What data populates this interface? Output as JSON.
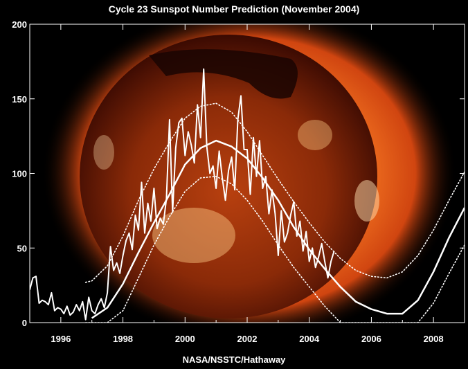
{
  "title": "Cycle 23 Sunspot Number Prediction (November 2004)",
  "credit": "NASA/NSSTC/Hathaway",
  "background_image": "solar X-ray image of the Sun (orange corona, dark disk)",
  "colors": {
    "background": "#000000",
    "corona": "#e8561a",
    "corona_bright": "#ff8a3a",
    "disk": "#4a1205",
    "lines": "#ffffff"
  },
  "chart_data": {
    "type": "line",
    "title": "Cycle 23 Sunspot Number Prediction (November 2004)",
    "xlabel": "",
    "ylabel": "",
    "xlim": [
      1995.0,
      2009.0
    ],
    "ylim": [
      0,
      200
    ],
    "x_ticks": [
      1996,
      1998,
      2000,
      2002,
      2004,
      2006,
      2008
    ],
    "y_ticks": [
      0,
      50,
      100,
      150,
      200
    ],
    "grid": false,
    "series": [
      {
        "style": "thin solid",
        "x": [
          1995.0,
          1995.1,
          1995.2,
          1995.3,
          1995.4,
          1995.5,
          1995.6,
          1995.7,
          1995.8,
          1995.9,
          1996.0,
          1996.1,
          1996.2,
          1996.3,
          1996.4,
          1996.5,
          1996.6,
          1996.7,
          1996.8,
          1996.9,
          1997.0,
          1997.1,
          1997.2,
          1997.3,
          1997.4,
          1997.5,
          1997.6,
          1997.7,
          1997.8,
          1997.9,
          1998.0,
          1998.1,
          1998.2,
          1998.3,
          1998.4,
          1998.5,
          1998.6,
          1998.7,
          1998.8,
          1998.9,
          1999.0,
          1999.1,
          1999.2,
          1999.3,
          1999.4,
          1999.5,
          1999.6,
          1999.7,
          1999.8,
          1999.9,
          2000.0,
          2000.1,
          2000.2,
          2000.3,
          2000.4,
          2000.5,
          2000.6,
          2000.7,
          2000.8,
          2000.9,
          2001.0,
          2001.1,
          2001.2,
          2001.3,
          2001.4,
          2001.5,
          2001.6,
          2001.7,
          2001.8,
          2001.9,
          2002.0,
          2002.1,
          2002.2,
          2002.3,
          2002.4,
          2002.5,
          2002.6,
          2002.7,
          2002.8,
          2002.9,
          2003.0,
          2003.1,
          2003.2,
          2003.3,
          2003.4,
          2003.5,
          2003.6,
          2003.7,
          2003.8,
          2003.9,
          2004.0,
          2004.1,
          2004.2,
          2004.3,
          2004.4,
          2004.5,
          2004.6,
          2004.7,
          2004.8
        ],
        "y": [
          22,
          30,
          31,
          13,
          15,
          14,
          12,
          20,
          8,
          10,
          9,
          6,
          11,
          5,
          7,
          12,
          8,
          14,
          2,
          17,
          8,
          6,
          12,
          16,
          10,
          20,
          51,
          35,
          40,
          33,
          45,
          55,
          60,
          49,
          72,
          62,
          94,
          60,
          80,
          68,
          90,
          63,
          70,
          66,
          83,
          136,
          74,
          117,
          134,
          137,
          112,
          128,
          119,
          107,
          146,
          124,
          170,
          118,
          100,
          105,
          90,
          115,
          97,
          82,
          102,
          111,
          89,
          136,
          152,
          116,
          116,
          86,
          124,
          98,
          122,
          90,
          98,
          73,
          89,
          73,
          45,
          75,
          54,
          60,
          72,
          81,
          58,
          68,
          48,
          61,
          41,
          50,
          37,
          44,
          53,
          41,
          30,
          41,
          48
        ]
      },
      {
        "style": "thick solid",
        "x": [
          1995.0,
          1995.5,
          1996.0,
          1996.5,
          1997.0,
          1997.5,
          1998.0,
          1998.5,
          1999.0,
          1999.5,
          2000.0,
          2000.5,
          2001.0,
          2001.5,
          2002.0,
          2002.5,
          2003.0,
          2003.5,
          2004.0,
          2004.5,
          2005.0,
          2005.5,
          2006.0,
          2006.5,
          2007.0,
          2007.5,
          2008.0,
          2008.5,
          2009.0
        ],
        "y": [
          null,
          null,
          null,
          null,
          3,
          10,
          26,
          47,
          67,
          86,
          106,
          117,
          122,
          118,
          110,
          97,
          82,
          64,
          49,
          36,
          24,
          14,
          9,
          6,
          6,
          15,
          34,
          57,
          77
        ]
      },
      {
        "style": "dotted upper bound",
        "x": [
          1996.8,
          1997.0,
          1997.5,
          1998.0,
          1998.5,
          1999.0,
          1999.5,
          2000.0,
          2000.5,
          2001.0,
          2001.5,
          2002.0,
          2002.5,
          2003.0,
          2003.5,
          2004.0,
          2004.5,
          2005.0,
          2005.5,
          2006.0,
          2006.5,
          2007.0,
          2007.5,
          2008.0,
          2008.5,
          2009.0
        ],
        "y": [
          27,
          28,
          38,
          58,
          82,
          103,
          121,
          137,
          145,
          147,
          141,
          128,
          112,
          96,
          81,
          67,
          54,
          43,
          35,
          31,
          30,
          34,
          45,
          62,
          82,
          101
        ]
      },
      {
        "style": "dotted lower bound",
        "x": [
          1996.8,
          1997.5,
          1998.0,
          1998.5,
          1999.0,
          1999.5,
          2000.0,
          2000.5,
          2001.0,
          2001.5,
          2002.0,
          2002.5,
          2003.0,
          2003.5,
          2004.0,
          2004.5,
          2005.0,
          2005.5,
          2006.0,
          2006.5,
          2007.0,
          2007.5,
          2008.0,
          2008.5,
          2009.0
        ],
        "y": [
          0,
          0,
          8,
          30,
          52,
          71,
          88,
          97,
          98,
          93,
          82,
          68,
          52,
          37,
          24,
          11,
          0,
          0,
          0,
          0,
          0,
          0,
          13,
          33,
          52
        ]
      }
    ]
  }
}
